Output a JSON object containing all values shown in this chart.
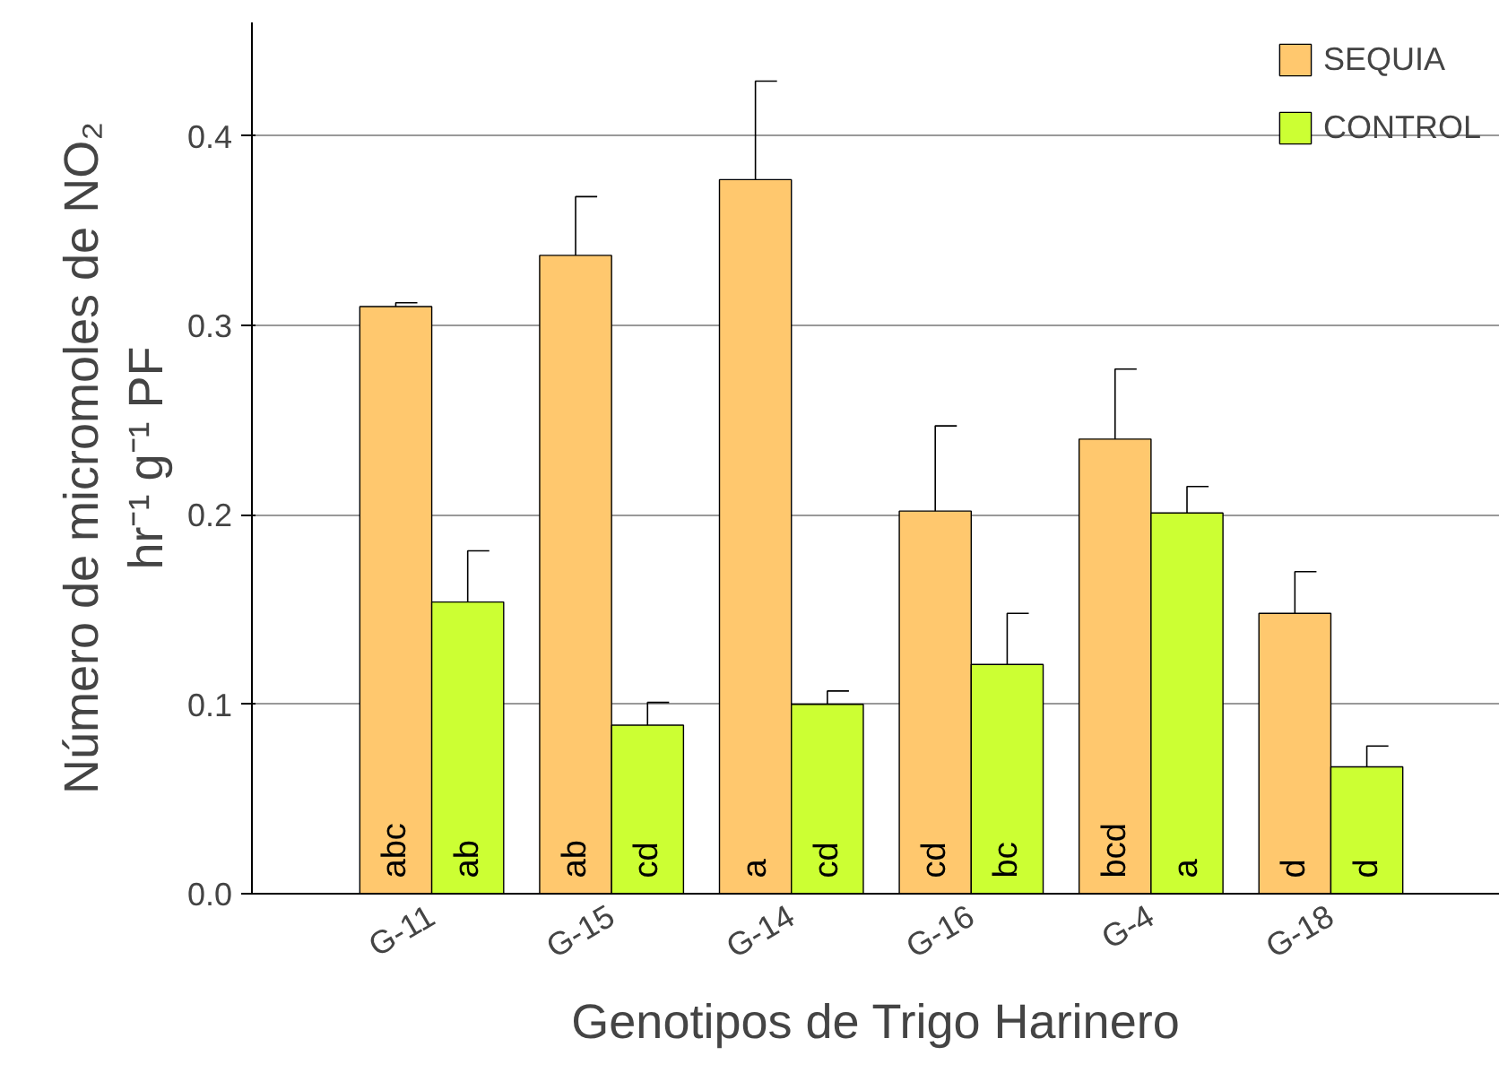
{
  "chart_data": {
    "type": "bar",
    "xlabel": "Genotipos de Trigo Harinero",
    "ylabel": "Número de micromoles de NO₂\nhr⁻¹ g⁻¹ PF",
    "categories": [
      "G-11",
      "G-15",
      "G-14",
      "G-16",
      "G-4",
      "G-18"
    ],
    "ylim": [
      0,
      0.46
    ],
    "yticks": [
      {
        "value": 0,
        "label": "0.0"
      },
      0.1,
      0.2,
      0.3,
      0.4
    ],
    "grid": "y",
    "legend": "top right",
    "series": [
      {
        "name": "SEQUIA",
        "color": "#ffc86e",
        "values": [
          0.31,
          0.337,
          0.377,
          0.202,
          0.24,
          0.148
        ],
        "errors": [
          [
            0.31,
            0.312
          ],
          [
            0.337,
            0.368
          ],
          [
            0.377,
            0.429
          ],
          [
            0.202,
            0.247
          ],
          [
            0.24,
            0.277
          ],
          [
            0.148,
            0.17
          ]
        ],
        "value_labels": [
          "abc",
          "ab",
          "a",
          "cd",
          "bcd",
          "d"
        ]
      },
      {
        "name": "CONTROL",
        "color": "#ccff33",
        "values": [
          0.154,
          0.089,
          0.1,
          0.121,
          0.201,
          0.067
        ],
        "errors": [
          [
            0.154,
            0.181
          ],
          [
            0.089,
            0.101
          ],
          [
            0.1,
            0.107
          ],
          [
            0.121,
            0.148
          ],
          [
            0.201,
            0.215
          ],
          [
            0.067,
            0.078
          ]
        ],
        "value_labels": [
          "ab",
          "cd",
          "cd",
          "bc",
          "a",
          "d"
        ]
      }
    ]
  }
}
